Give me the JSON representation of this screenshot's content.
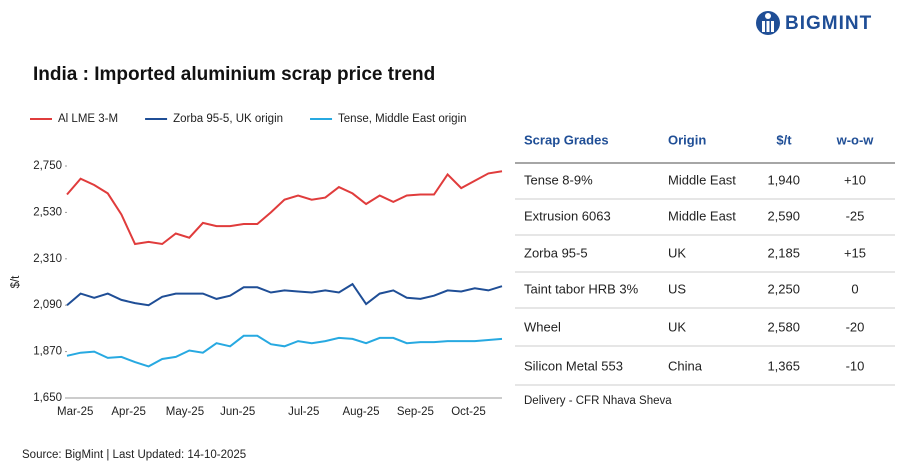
{
  "header": {
    "logo": "BIGMINT"
  },
  "chart_data": {
    "type": "line",
    "title": "India : Imported aluminium scrap price trend",
    "ylabel": "$/t",
    "categories": [
      "Mar-25",
      null,
      null,
      null,
      "Apr-25",
      null,
      null,
      null,
      "May-25",
      null,
      null,
      null,
      "Jun-25",
      null,
      null,
      null,
      null,
      "Jul-25",
      null,
      null,
      null,
      "Aug-25",
      null,
      null,
      null,
      "Sep-25",
      null,
      null,
      null,
      "Oct-25",
      null,
      null,
      null
    ],
    "series": [
      {
        "name": "Al LME 3-M",
        "color": "#e03c3c",
        "values": [
          2615,
          2690,
          2660,
          2620,
          2520,
          2380,
          2390,
          2380,
          2430,
          2410,
          2480,
          2465,
          2465,
          2475,
          2475,
          2530,
          2590,
          2610,
          2590,
          2600,
          2650,
          2620,
          2570,
          2610,
          2580,
          2610,
          2615,
          2615,
          2710,
          2645,
          2680,
          2715,
          2725
        ]
      },
      {
        "name": "Zorba 95-5, UK origin",
        "color": "#1f4e96",
        "values": [
          2090,
          2145,
          2125,
          2145,
          2115,
          2100,
          2090,
          2130,
          2145,
          2145,
          2145,
          2120,
          2135,
          2175,
          2175,
          2150,
          2160,
          2155,
          2150,
          2160,
          2150,
          2190,
          2095,
          2145,
          2160,
          2125,
          2120,
          2135,
          2160,
          2155,
          2170,
          2160,
          2180
        ]
      },
      {
        "name": "Tense, Middle East origin",
        "color": "#27a9e1",
        "values": [
          1850,
          1865,
          1870,
          1840,
          1845,
          1820,
          1800,
          1835,
          1845,
          1875,
          1865,
          1910,
          1895,
          1945,
          1945,
          1905,
          1895,
          1920,
          1910,
          1920,
          1935,
          1930,
          1910,
          1935,
          1935,
          1910,
          1915,
          1915,
          1920,
          1920,
          1920,
          1925,
          1930
        ]
      }
    ],
    "ylim": [
      1650,
      2750
    ],
    "yticks": [
      {
        "value": 1650,
        "label": "1,650"
      },
      {
        "value": 1870,
        "label": "1,870"
      },
      {
        "value": 2090,
        "label": "2,090"
      },
      {
        "value": 2310,
        "label": "2,310"
      },
      {
        "value": 2530,
        "label": "2,530"
      },
      {
        "value": 2750,
        "label": "2,750"
      }
    ],
    "grid": false,
    "legend": "top"
  },
  "table": {
    "header": [
      "Scrap Grades",
      "Origin",
      "$/t",
      "w-o-w"
    ],
    "rows": [
      [
        "Tense 8-9%",
        "Middle East",
        "1,940",
        "+10"
      ],
      [
        "Extrusion 6063",
        "Middle East",
        "2,590",
        "-25"
      ],
      [
        "Zorba 95-5",
        "UK",
        "2,185",
        "+15"
      ],
      [
        "Taint tabor HRB 3%",
        "US",
        "2,250",
        "0"
      ],
      [
        "Wheel",
        "UK",
        "2,580",
        "-20"
      ],
      [
        "Silicon Metal 553",
        "China",
        "1,365",
        "-10"
      ]
    ],
    "note": "Delivery - CFR Nhava Sheva"
  },
  "footer": {
    "source": "Source: BigMint | Last Updated: 14-10-2025"
  }
}
